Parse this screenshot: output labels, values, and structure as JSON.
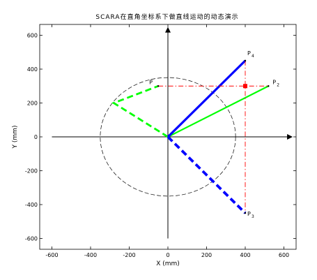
{
  "chart_data": {
    "type": "line",
    "title": "SCARA在直角坐标系下做直线运动的动态演示",
    "xlabel": "X (mm)",
    "ylabel": "Y (mm)",
    "xlim": [
      -650,
      650
    ],
    "ylim": [
      -650,
      650
    ],
    "xticks": [
      -600,
      -400,
      -200,
      0,
      200,
      400,
      600
    ],
    "yticks": [
      -600,
      -400,
      -200,
      0,
      200,
      400,
      600
    ],
    "grid": false,
    "workspace_circle": {
      "center": [
        0,
        0
      ],
      "radius": 350,
      "style": "dashed",
      "color": "#000000"
    },
    "arrow_axes": {
      "x_range": [
        -600,
        620
      ],
      "y_range": [
        -600,
        620
      ]
    },
    "points": [
      {
        "name": "P",
        "sub": "",
        "x": -50,
        "y": 300
      },
      {
        "name": "P",
        "sub": "2",
        "x": 520,
        "y": 300
      },
      {
        "name": "P",
        "sub": "3",
        "x": 400,
        "y": -450
      },
      {
        "name": "P",
        "sub": "4",
        "x": 400,
        "y": 450
      }
    ],
    "series": [
      {
        "color": "#00ff00",
        "style": "dashed",
        "points": [
          [
            0,
            0
          ],
          [
            -280,
            200
          ],
          [
            -50,
            300
          ]
        ]
      },
      {
        "color": "#00ff00",
        "style": "solid",
        "points": [
          [
            0,
            0
          ],
          [
            520,
            300
          ]
        ]
      },
      {
        "color": "#0000ff",
        "style": "solid",
        "points": [
          [
            0,
            0
          ],
          [
            400,
            450
          ]
        ]
      },
      {
        "color": "#0000ff",
        "style": "dashed",
        "points": [
          [
            0,
            0
          ],
          [
            400,
            -450
          ]
        ]
      },
      {
        "color": "#ff0000",
        "style": "dashdot",
        "points": [
          [
            -50,
            300
          ],
          [
            520,
            300
          ]
        ]
      },
      {
        "color": "#ff0000",
        "style": "dashdot",
        "points": [
          [
            400,
            450
          ],
          [
            400,
            -450
          ]
        ]
      }
    ],
    "marker": {
      "x": 400,
      "y": 300,
      "color": "#ff0000"
    }
  }
}
